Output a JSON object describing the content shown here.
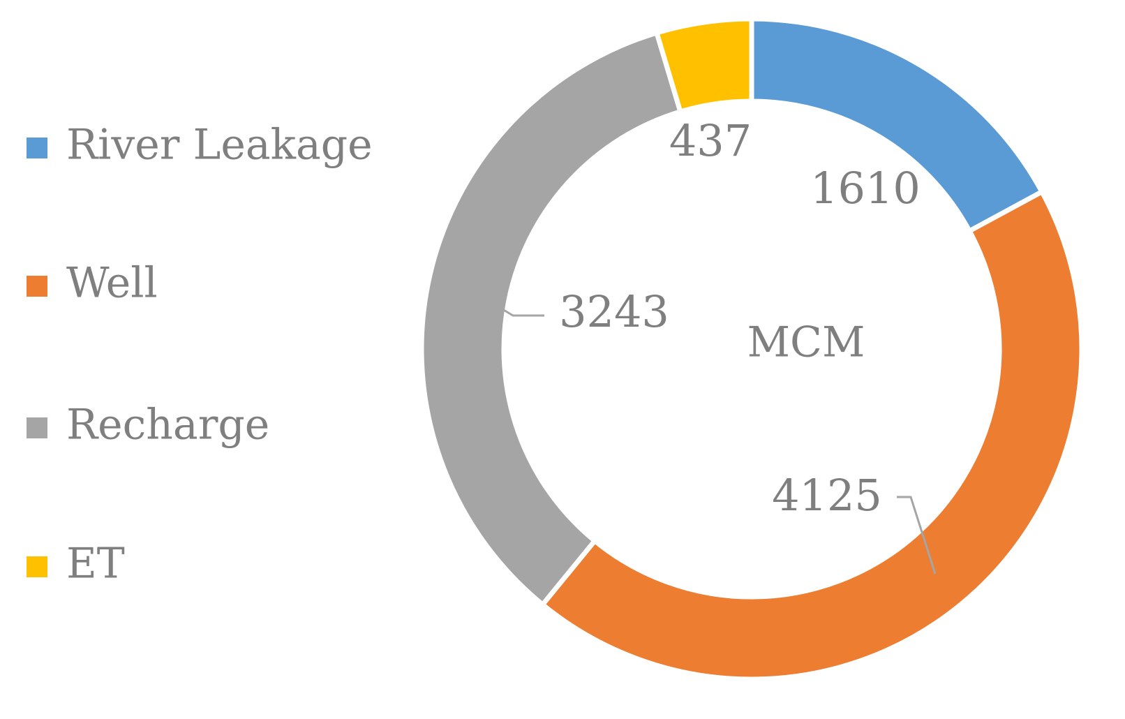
{
  "chart_data": {
    "type": "doughnut",
    "center_label": "MCM",
    "categories": [
      "River Leakage",
      "Well",
      "Recharge",
      "ET"
    ],
    "values": [
      1610,
      4125,
      3243,
      437
    ],
    "colors": [
      "#5b9bd5",
      "#ed7d31",
      "#a5a5a5",
      "#ffc000"
    ],
    "legend": "left"
  }
}
